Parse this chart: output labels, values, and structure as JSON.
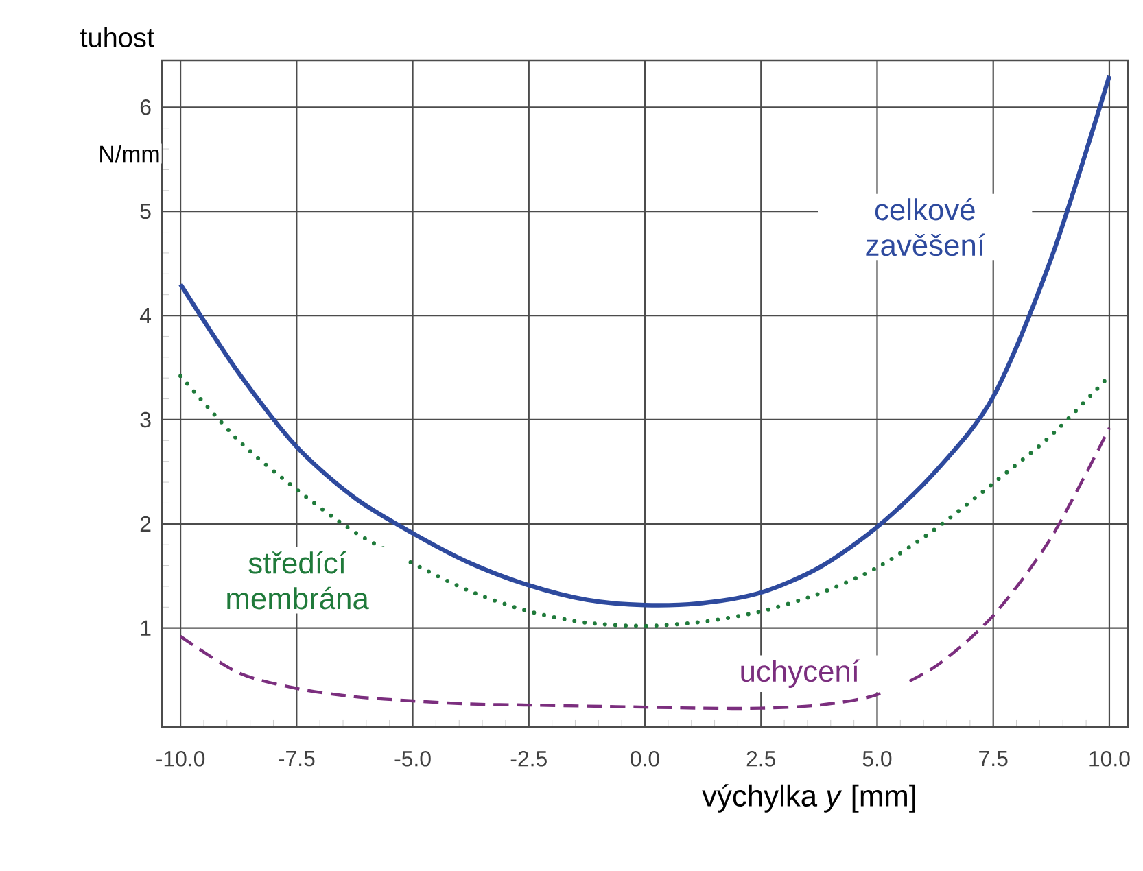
{
  "chart_data": {
    "type": "line",
    "xlabel": "výchylka *y* [mm]",
    "ylabel": "tuhost",
    "annotations": [
      "N/mm"
    ],
    "x": [
      -10,
      -8.75,
      -7.5,
      -6.25,
      -5,
      -3.75,
      -2.5,
      -1.25,
      0,
      1.25,
      2.5,
      3.75,
      5,
      6.25,
      7.5,
      8.75,
      10
    ],
    "series": [
      {
        "name": "celkové zavěšení",
        "color": "#2e4a9e",
        "line_style": "solid",
        "values": [
          4.3,
          3.45,
          2.74,
          2.25,
          1.91,
          1.62,
          1.41,
          1.27,
          1.22,
          1.24,
          1.34,
          1.58,
          1.97,
          2.5,
          3.22,
          4.55,
          6.3
        ]
      },
      {
        "name": "středící membrána",
        "color": "#1f7a3a",
        "line_style": "dotted",
        "values": [
          3.42,
          2.8,
          2.33,
          1.92,
          1.62,
          1.35,
          1.16,
          1.05,
          1.02,
          1.06,
          1.16,
          1.33,
          1.58,
          1.95,
          2.39,
          2.85,
          3.42
        ]
      },
      {
        "name": "uchycení",
        "color": "#7b2e7e",
        "line_style": "dashed",
        "values": [
          0.92,
          0.57,
          0.42,
          0.34,
          0.3,
          0.27,
          0.26,
          0.25,
          0.24,
          0.23,
          0.23,
          0.26,
          0.36,
          0.63,
          1.12,
          1.87,
          2.92
        ]
      }
    ],
    "xlim": [
      -10.4,
      10.4
    ],
    "ylim": [
      0.05,
      6.45
    ],
    "xticks": [
      {
        "value": -10,
        "label": "-10.0"
      },
      {
        "value": -7.5,
        "label": "-7.5"
      },
      {
        "value": -5,
        "label": "-5.0"
      },
      {
        "value": -2.5,
        "label": "-2.5"
      },
      {
        "value": 0,
        "label": "0.0"
      },
      {
        "value": 2.5,
        "label": "2.5"
      },
      {
        "value": 5,
        "label": "5.0"
      },
      {
        "value": 7.5,
        "label": "7.5"
      },
      {
        "value": 10,
        "label": "10.0"
      }
    ],
    "yticks": [
      1,
      2,
      3,
      4,
      5,
      6
    ],
    "grid": true,
    "marker": "none"
  }
}
